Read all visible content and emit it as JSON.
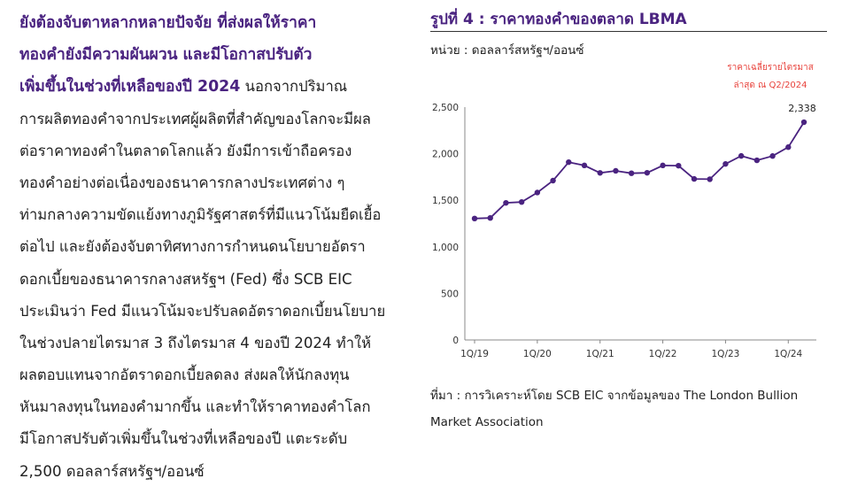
{
  "article": {
    "lines": [
      {
        "hl": "ยังต้องจับตาหลากหลายปัจจัย ที่ส่งผลให้ราคา",
        "text": ""
      },
      {
        "hl": "ทองคำยังมีความผันผวน และมีโอกาสปรับตัว",
        "text": ""
      },
      {
        "hl": "เพิ่มขึ้นในช่วงที่เหลือของปี 2024",
        "text": " นอกจากปริมาณ"
      },
      {
        "hl": "",
        "text": "การผลิตทองคำจากประเทศผู้ผลิตที่สำคัญของโลกจะมีผล"
      },
      {
        "hl": "",
        "text": "ต่อราคาทองคำในตลาดโลกแล้ว ยังมีการเข้าถือครอง"
      },
      {
        "hl": "",
        "text": "ทองคำอย่างต่อเนื่องของธนาคารกลางประเทศต่าง ๆ"
      },
      {
        "hl": "",
        "text": "ท่ามกลางความขัดแย้งทางภูมิรัฐศาสตร์ที่มีแนวโน้มยืดเยื้อ"
      },
      {
        "hl": "",
        "text": "ต่อไป และยังต้องจับตาทิศทางการกำหนดนโยบายอัตรา"
      },
      {
        "hl": "",
        "text": "ดอกเบี้ยของธนาคารกลางสหรัฐฯ (Fed) ซึ่ง SCB EIC"
      },
      {
        "hl": "",
        "text": "ประเมินว่า Fed มีแนวโน้มจะปรับลดอัตราดอกเบี้ยนโยบาย"
      },
      {
        "hl": "",
        "text": "ในช่วงปลายไตรมาส 3 ถึงไตรมาส 4 ของปี 2024 ทำให้"
      },
      {
        "hl": "",
        "text": "ผลตอบแทนจากอัตราดอกเบี้ยลดลง ส่งผลให้นักลงทุน"
      },
      {
        "hl": "",
        "text": "หันมาลงทุนในทองคำมากขึ้น และทำให้ราคาทองคำโลก"
      },
      {
        "hl": "",
        "text": "มีโอกาสปรับตัวเพิ่มขึ้นในช่วงที่เหลือของปี แตะระดับ"
      },
      {
        "hl": "",
        "text": "2,500 ดอลลาร์สหรัฐฯ/ออนซ์"
      }
    ]
  },
  "figure": {
    "title": "รูปที่ 4 : ราคาทองคำของตลาด LBMA",
    "unit": "หน่วย : ดอลลาร์สหรัฐฯ/ออนซ์",
    "source": "ที่มา : การวิเคราะห์โดย SCB EIC จากข้อมูลของ The London Bullion Market Association"
  },
  "colors": {
    "series": "#4a2380",
    "annotation": "#e8423b",
    "heading": "#4a2380"
  },
  "chart_data": {
    "type": "line",
    "title": "",
    "xlabel": "",
    "ylabel": "",
    "ylim": [
      0,
      2500
    ],
    "yticks": [
      0,
      500,
      1000,
      1500,
      2000,
      2500
    ],
    "ytick_labels": [
      "0",
      "500",
      "1,000",
      "1,500",
      "2,000",
      "2,500"
    ],
    "grid": false,
    "x": [
      "1Q/19",
      "2Q/19",
      "3Q/19",
      "4Q/19",
      "1Q/20",
      "2Q/20",
      "3Q/20",
      "4Q/20",
      "1Q/21",
      "2Q/21",
      "3Q/21",
      "4Q/21",
      "1Q/22",
      "2Q/22",
      "3Q/22",
      "4Q/22",
      "1Q/23",
      "2Q/23",
      "3Q/23",
      "4Q/23",
      "1Q/24",
      "2Q/24"
    ],
    "xtick_labels": [
      "1Q/19",
      "1Q/20",
      "1Q/21",
      "1Q/22",
      "1Q/23",
      "1Q/24"
    ],
    "series": [
      {
        "values": [
          1304,
          1310,
          1472,
          1481,
          1583,
          1711,
          1909,
          1874,
          1794,
          1816,
          1790,
          1795,
          1874,
          1871,
          1729,
          1726,
          1890,
          1976,
          1929,
          1975,
          2070,
          2338
        ]
      }
    ],
    "annotations": {
      "last_value_label": "2,338",
      "note_line1": "ราคาเฉลี่ยรายไตรมาส",
      "note_line2": "ล่าสุด ณ Q2/2024"
    }
  }
}
